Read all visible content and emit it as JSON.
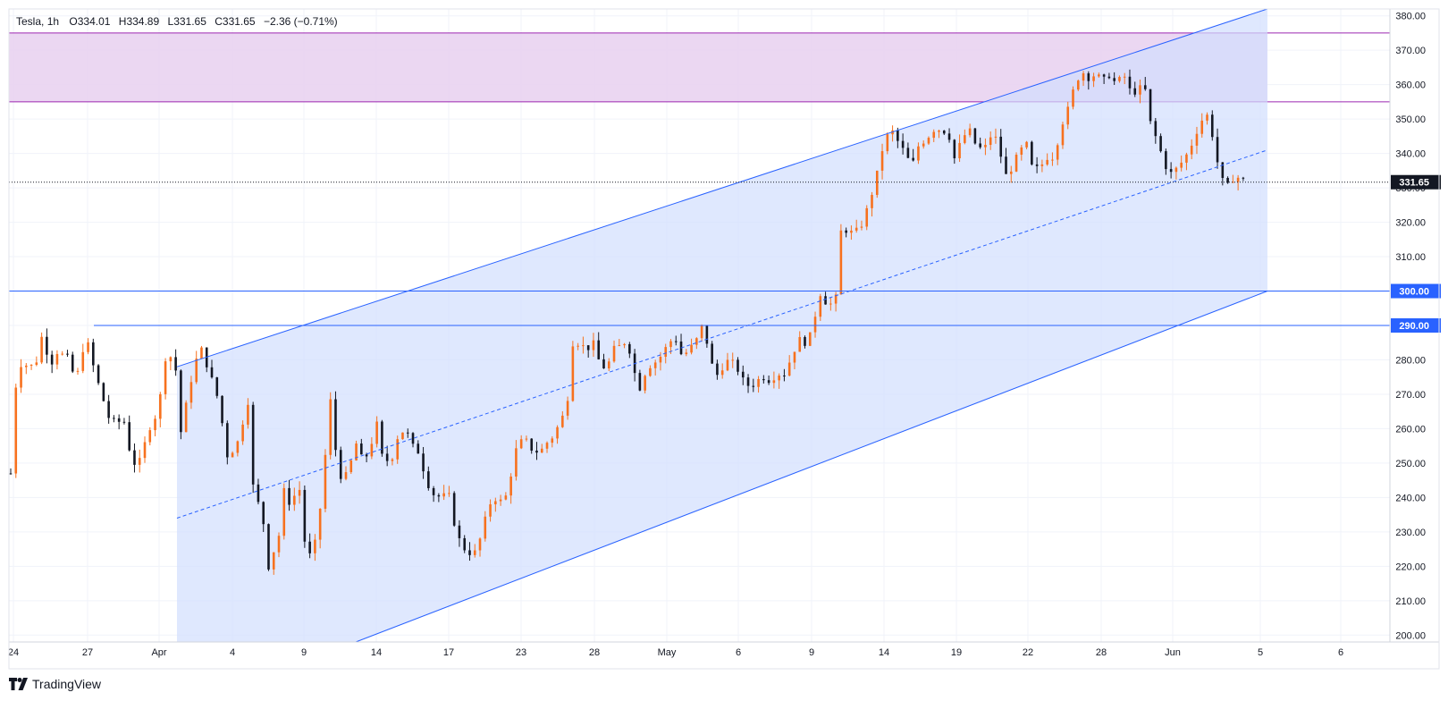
{
  "header": {
    "symbol": "Tesla",
    "interval": "1h",
    "open_label": "O",
    "open_value": "334.01",
    "high_label": "H",
    "high_value": "334.89",
    "low_label": "L",
    "low_value": "331.65",
    "close_label": "C",
    "close_value": "331.65",
    "change": "−2.36 (−0.71%)"
  },
  "branding": {
    "name": "TradingView"
  },
  "colors": {
    "up": "#f7711e",
    "down": "#131722",
    "channel_fill": "#d1defe",
    "channel_line": "#2962ff",
    "zone_fill": "#e9d3f1",
    "zone_line": "#9c27b0",
    "level_line": "#2962ff",
    "price_tag": "#131722"
  },
  "chart_data": {
    "type": "candlestick",
    "ylim": [
      198,
      382
    ],
    "y_ticks": [
      200,
      210,
      220,
      230,
      240,
      250,
      260,
      270,
      280,
      290,
      300,
      310,
      320,
      330,
      340,
      350,
      360,
      370,
      380
    ],
    "x_ticks": [
      "24",
      "27",
      "Apr",
      "4",
      "9",
      "14",
      "17",
      "23",
      "28",
      "May",
      "6",
      "9",
      "14",
      "19",
      "22",
      "28",
      "Jun",
      "5",
      "6"
    ],
    "last_price": 331.65,
    "last_price_label": "331.65",
    "horizontal_levels": [
      {
        "value": 300,
        "label": "300.00"
      },
      {
        "value": 290,
        "label": "290.00"
      }
    ],
    "resistance_zone": {
      "low": 355,
      "high": 375
    },
    "channel": {
      "upper": [
        [
          0,
          278
        ],
        [
          1,
          382
        ]
      ],
      "lower": [
        [
          0,
          178
        ],
        [
          1,
          300
        ]
      ],
      "mid": [
        [
          0,
          234
        ],
        [
          1,
          341
        ]
      ]
    },
    "price_path": [
      [
        0,
        247
      ],
      [
        0.3,
        266
      ],
      [
        0.8,
        279
      ],
      [
        2.6,
        278
      ],
      [
        3.5,
        289
      ],
      [
        4.2,
        276
      ],
      [
        4.6,
        283
      ],
      [
        6.3,
        280
      ],
      [
        6.9,
        273
      ],
      [
        8.0,
        287
      ],
      [
        9.0,
        276
      ],
      [
        10.6,
        262
      ],
      [
        12.2,
        262
      ],
      [
        12.9,
        250
      ],
      [
        13.7,
        250
      ],
      [
        15.0,
        262
      ],
      [
        15.8,
        265
      ],
      [
        16.3,
        280
      ],
      [
        16.9,
        282
      ],
      [
        17.6,
        277
      ],
      [
        18.0,
        257
      ],
      [
        19.3,
        275
      ],
      [
        20.2,
        284
      ],
      [
        21.0,
        278
      ],
      [
        22.3,
        267
      ],
      [
        23.0,
        252
      ],
      [
        24.1,
        255
      ],
      [
        25.3,
        268
      ],
      [
        25.9,
        241
      ],
      [
        26.8,
        236
      ],
      [
        27.5,
        220
      ],
      [
        28.6,
        229
      ],
      [
        29.2,
        243
      ],
      [
        29.9,
        237
      ],
      [
        30.7,
        245
      ],
      [
        31.4,
        226
      ],
      [
        32.1,
        222
      ],
      [
        32.7,
        230
      ],
      [
        33.4,
        246
      ],
      [
        34.0,
        271
      ],
      [
        34.5,
        256
      ],
      [
        35.3,
        245
      ],
      [
        36.0,
        247
      ],
      [
        36.8,
        256
      ],
      [
        37.6,
        250
      ],
      [
        38.4,
        255
      ],
      [
        39.0,
        262
      ],
      [
        39.6,
        252
      ],
      [
        40.5,
        250
      ],
      [
        41.3,
        258
      ],
      [
        42.1,
        260
      ],
      [
        42.8,
        255
      ],
      [
        43.6,
        253
      ],
      [
        44.3,
        245
      ],
      [
        45.1,
        241
      ],
      [
        45.9,
        240
      ],
      [
        46.7,
        241
      ],
      [
        47.5,
        230
      ],
      [
        48.1,
        226
      ],
      [
        48.8,
        224
      ],
      [
        49.6,
        224
      ],
      [
        50.3,
        230
      ],
      [
        51.0,
        238
      ],
      [
        51.8,
        240
      ],
      [
        52.6,
        238
      ],
      [
        53.2,
        245
      ],
      [
        54.0,
        255
      ],
      [
        54.8,
        257
      ],
      [
        55.6,
        254
      ],
      [
        56.4,
        253
      ],
      [
        57.2,
        256
      ],
      [
        57.9,
        258
      ],
      [
        58.6,
        262
      ],
      [
        59.3,
        266
      ],
      [
        59.9,
        285
      ],
      [
        60.6,
        285
      ],
      [
        61.4,
        283
      ],
      [
        62.1,
        285
      ],
      [
        62.7,
        280
      ],
      [
        63.5,
        277
      ],
      [
        64.3,
        283
      ],
      [
        65.0,
        284
      ],
      [
        65.8,
        286
      ],
      [
        66.3,
        278
      ],
      [
        67.1,
        272
      ],
      [
        67.9,
        278
      ],
      [
        68.6,
        279
      ],
      [
        69.3,
        281
      ],
      [
        70.0,
        284
      ],
      [
        70.8,
        287
      ],
      [
        71.6,
        281
      ],
      [
        72.4,
        283
      ],
      [
        73.2,
        286
      ],
      [
        73.9,
        291
      ],
      [
        74.5,
        281
      ],
      [
        75.2,
        275
      ],
      [
        75.9,
        278
      ],
      [
        76.6,
        280
      ],
      [
        77.4,
        278
      ],
      [
        78.1,
        274
      ],
      [
        78.9,
        272
      ],
      [
        79.6,
        274
      ],
      [
        80.3,
        275
      ],
      [
        81.0,
        274
      ],
      [
        81.7,
        276
      ],
      [
        82.5,
        276
      ],
      [
        83.3,
        281
      ],
      [
        84.0,
        286
      ],
      [
        84.8,
        285
      ],
      [
        85.5,
        288
      ],
      [
        86.2,
        300
      ],
      [
        86.9,
        297
      ],
      [
        87.6,
        296
      ],
      [
        88.0,
        298
      ],
      [
        88.6,
        319
      ],
      [
        89.4,
        317
      ],
      [
        90.1,
        317
      ],
      [
        90.9,
        320
      ],
      [
        91.6,
        326
      ],
      [
        92.4,
        334
      ],
      [
        93.1,
        343
      ],
      [
        93.9,
        347
      ],
      [
        94.7,
        343
      ],
      [
        95.4,
        340
      ],
      [
        96.1,
        336
      ],
      [
        96.9,
        343
      ],
      [
        97.6,
        344
      ],
      [
        98.4,
        347
      ],
      [
        99.1,
        347
      ],
      [
        100.0,
        346
      ],
      [
        100.7,
        338
      ],
      [
        101.4,
        344
      ],
      [
        102.2,
        347
      ],
      [
        103.0,
        342
      ],
      [
        103.8,
        341
      ],
      [
        104.5,
        345
      ],
      [
        105.3,
        344
      ],
      [
        106.0,
        333
      ],
      [
        106.8,
        336
      ],
      [
        107.5,
        340
      ],
      [
        108.3,
        343
      ],
      [
        109.0,
        335
      ],
      [
        109.8,
        336
      ],
      [
        110.5,
        339
      ],
      [
        111.3,
        339
      ],
      [
        112.0,
        348
      ],
      [
        112.8,
        353
      ],
      [
        113.5,
        360
      ],
      [
        114.2,
        364
      ],
      [
        115.0,
        362
      ],
      [
        115.7,
        363
      ],
      [
        116.5,
        361
      ],
      [
        117.2,
        363
      ],
      [
        117.9,
        360
      ],
      [
        118.7,
        363
      ],
      [
        119.4,
        358
      ],
      [
        120.1,
        358
      ],
      [
        120.9,
        360
      ],
      [
        121.6,
        348
      ],
      [
        122.4,
        343
      ],
      [
        123.0,
        337
      ],
      [
        123.8,
        334
      ],
      [
        124.5,
        336
      ],
      [
        125.3,
        339
      ],
      [
        126.0,
        343
      ],
      [
        126.7,
        348
      ],
      [
        127.5,
        352
      ],
      [
        128.2,
        345
      ],
      [
        129.0,
        333
      ],
      [
        129.7,
        330
      ],
      [
        130.4,
        333
      ],
      [
        131.2,
        333
      ],
      [
        131.65,
        331.65
      ]
    ]
  }
}
